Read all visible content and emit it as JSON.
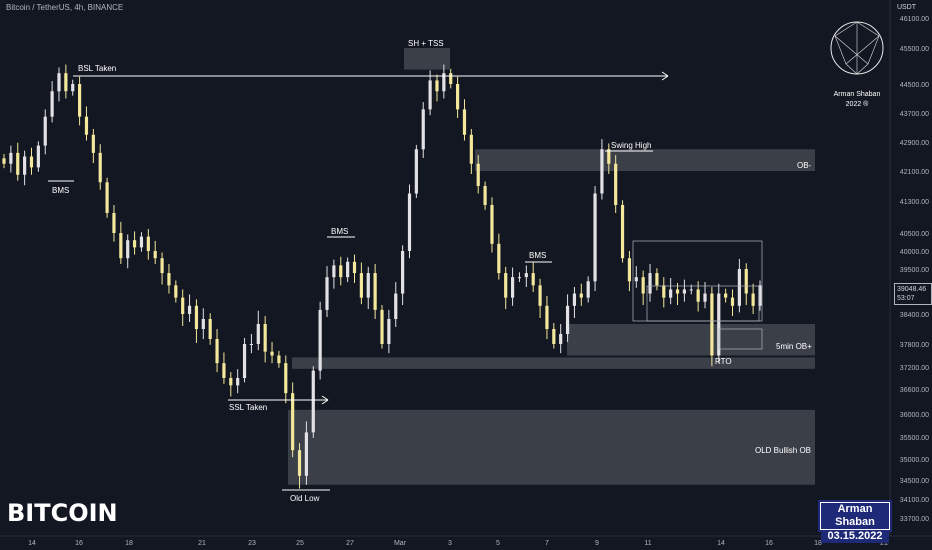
{
  "symbol_info": "Bitcoin / TetherUS, 4h, BINANCE",
  "price_unit": "USDT",
  "title_text": "BITCOIN",
  "stamp": {
    "name": "Arman Shaban",
    "date": "03.15.2022"
  },
  "logo": {
    "name": "Arman Shaban",
    "year": "2022 ®"
  },
  "last_price": {
    "value": "39048.46",
    "countdown": "53:07"
  },
  "colors": {
    "background": "#131722",
    "bull": "#e2e2e6",
    "bear": "#f2e79a",
    "zone": "#4a4d55",
    "annotation": "#ffffff"
  },
  "chart_data": {
    "type": "candlestick",
    "y_axis_labels": [
      "46100.00",
      "45500.00",
      "44500.00",
      "43700.00",
      "42900.00",
      "42100.00",
      "41300.00",
      "40500.00",
      "40000.00",
      "39500.00",
      "38400.00",
      "37800.00",
      "37200.00",
      "36600.00",
      "36000.00",
      "35500.00",
      "35000.00",
      "34500.00",
      "34100.00",
      "33700.00"
    ],
    "x_axis_labels": [
      "14",
      "16",
      "18",
      "21",
      "23",
      "25",
      "27",
      "Mar",
      "3",
      "5",
      "7",
      "9",
      "11",
      "14",
      "16",
      "18",
      "21"
    ],
    "annotations": [
      "BSL Taken",
      "BMS",
      "SH + TSS",
      "BMS",
      "BMS",
      "Swing High",
      "OB-",
      "5min OB+",
      "RTO",
      "SSL Taken",
      "OLD Bullish OB",
      "Old Low"
    ],
    "zones": [
      {
        "label": "OB-",
        "low": 42100,
        "high": 42700
      },
      {
        "label": "5min OB+",
        "low": 37500,
        "high": 38200
      },
      {
        "label": "RTO",
        "low": 37150,
        "high": 37450
      },
      {
        "label": "OLD Bullish OB",
        "low": 34400,
        "high": 36100
      },
      {
        "label": "SH + TSS",
        "low": 44900,
        "high": 45500
      }
    ],
    "candles_note": "Daily-approximate 4h price path from Feb 14 to Mar 15, 2022",
    "path": [
      42300,
      42600,
      42000,
      42500,
      42200,
      42800,
      43600,
      44300,
      44800,
      44300,
      44500,
      43600,
      43100,
      42600,
      41800,
      41000,
      40500,
      39800,
      40300,
      40100,
      40400,
      40000,
      39800,
      39400,
      39100,
      38800,
      38400,
      38600,
      38100,
      38300,
      37900,
      37300,
      36900,
      36700,
      36900,
      37800,
      37800,
      38200,
      37600,
      37500,
      37300,
      36500,
      35200,
      34600,
      35600,
      37100,
      38500,
      39300,
      39600,
      39300,
      39700,
      39400,
      38800,
      39400,
      38500,
      37800,
      38300,
      38900,
      40000,
      41500,
      42700,
      43800,
      44600,
      44300,
      44800,
      44500,
      43800,
      43100,
      42300,
      41700,
      41200,
      40200,
      39400,
      38800,
      39300,
      39300,
      39400,
      39100,
      38600,
      38100,
      37800,
      38000,
      38600,
      38900,
      38800,
      39200,
      41500,
      42700,
      42300,
      41200,
      39800,
      39200,
      39300,
      38900,
      39400,
      39100,
      38800,
      39000,
      38900,
      39000,
      39000,
      38700,
      38900,
      37500,
      38900,
      38800,
      38600,
      39500,
      38900,
      38600,
      39100
    ]
  }
}
